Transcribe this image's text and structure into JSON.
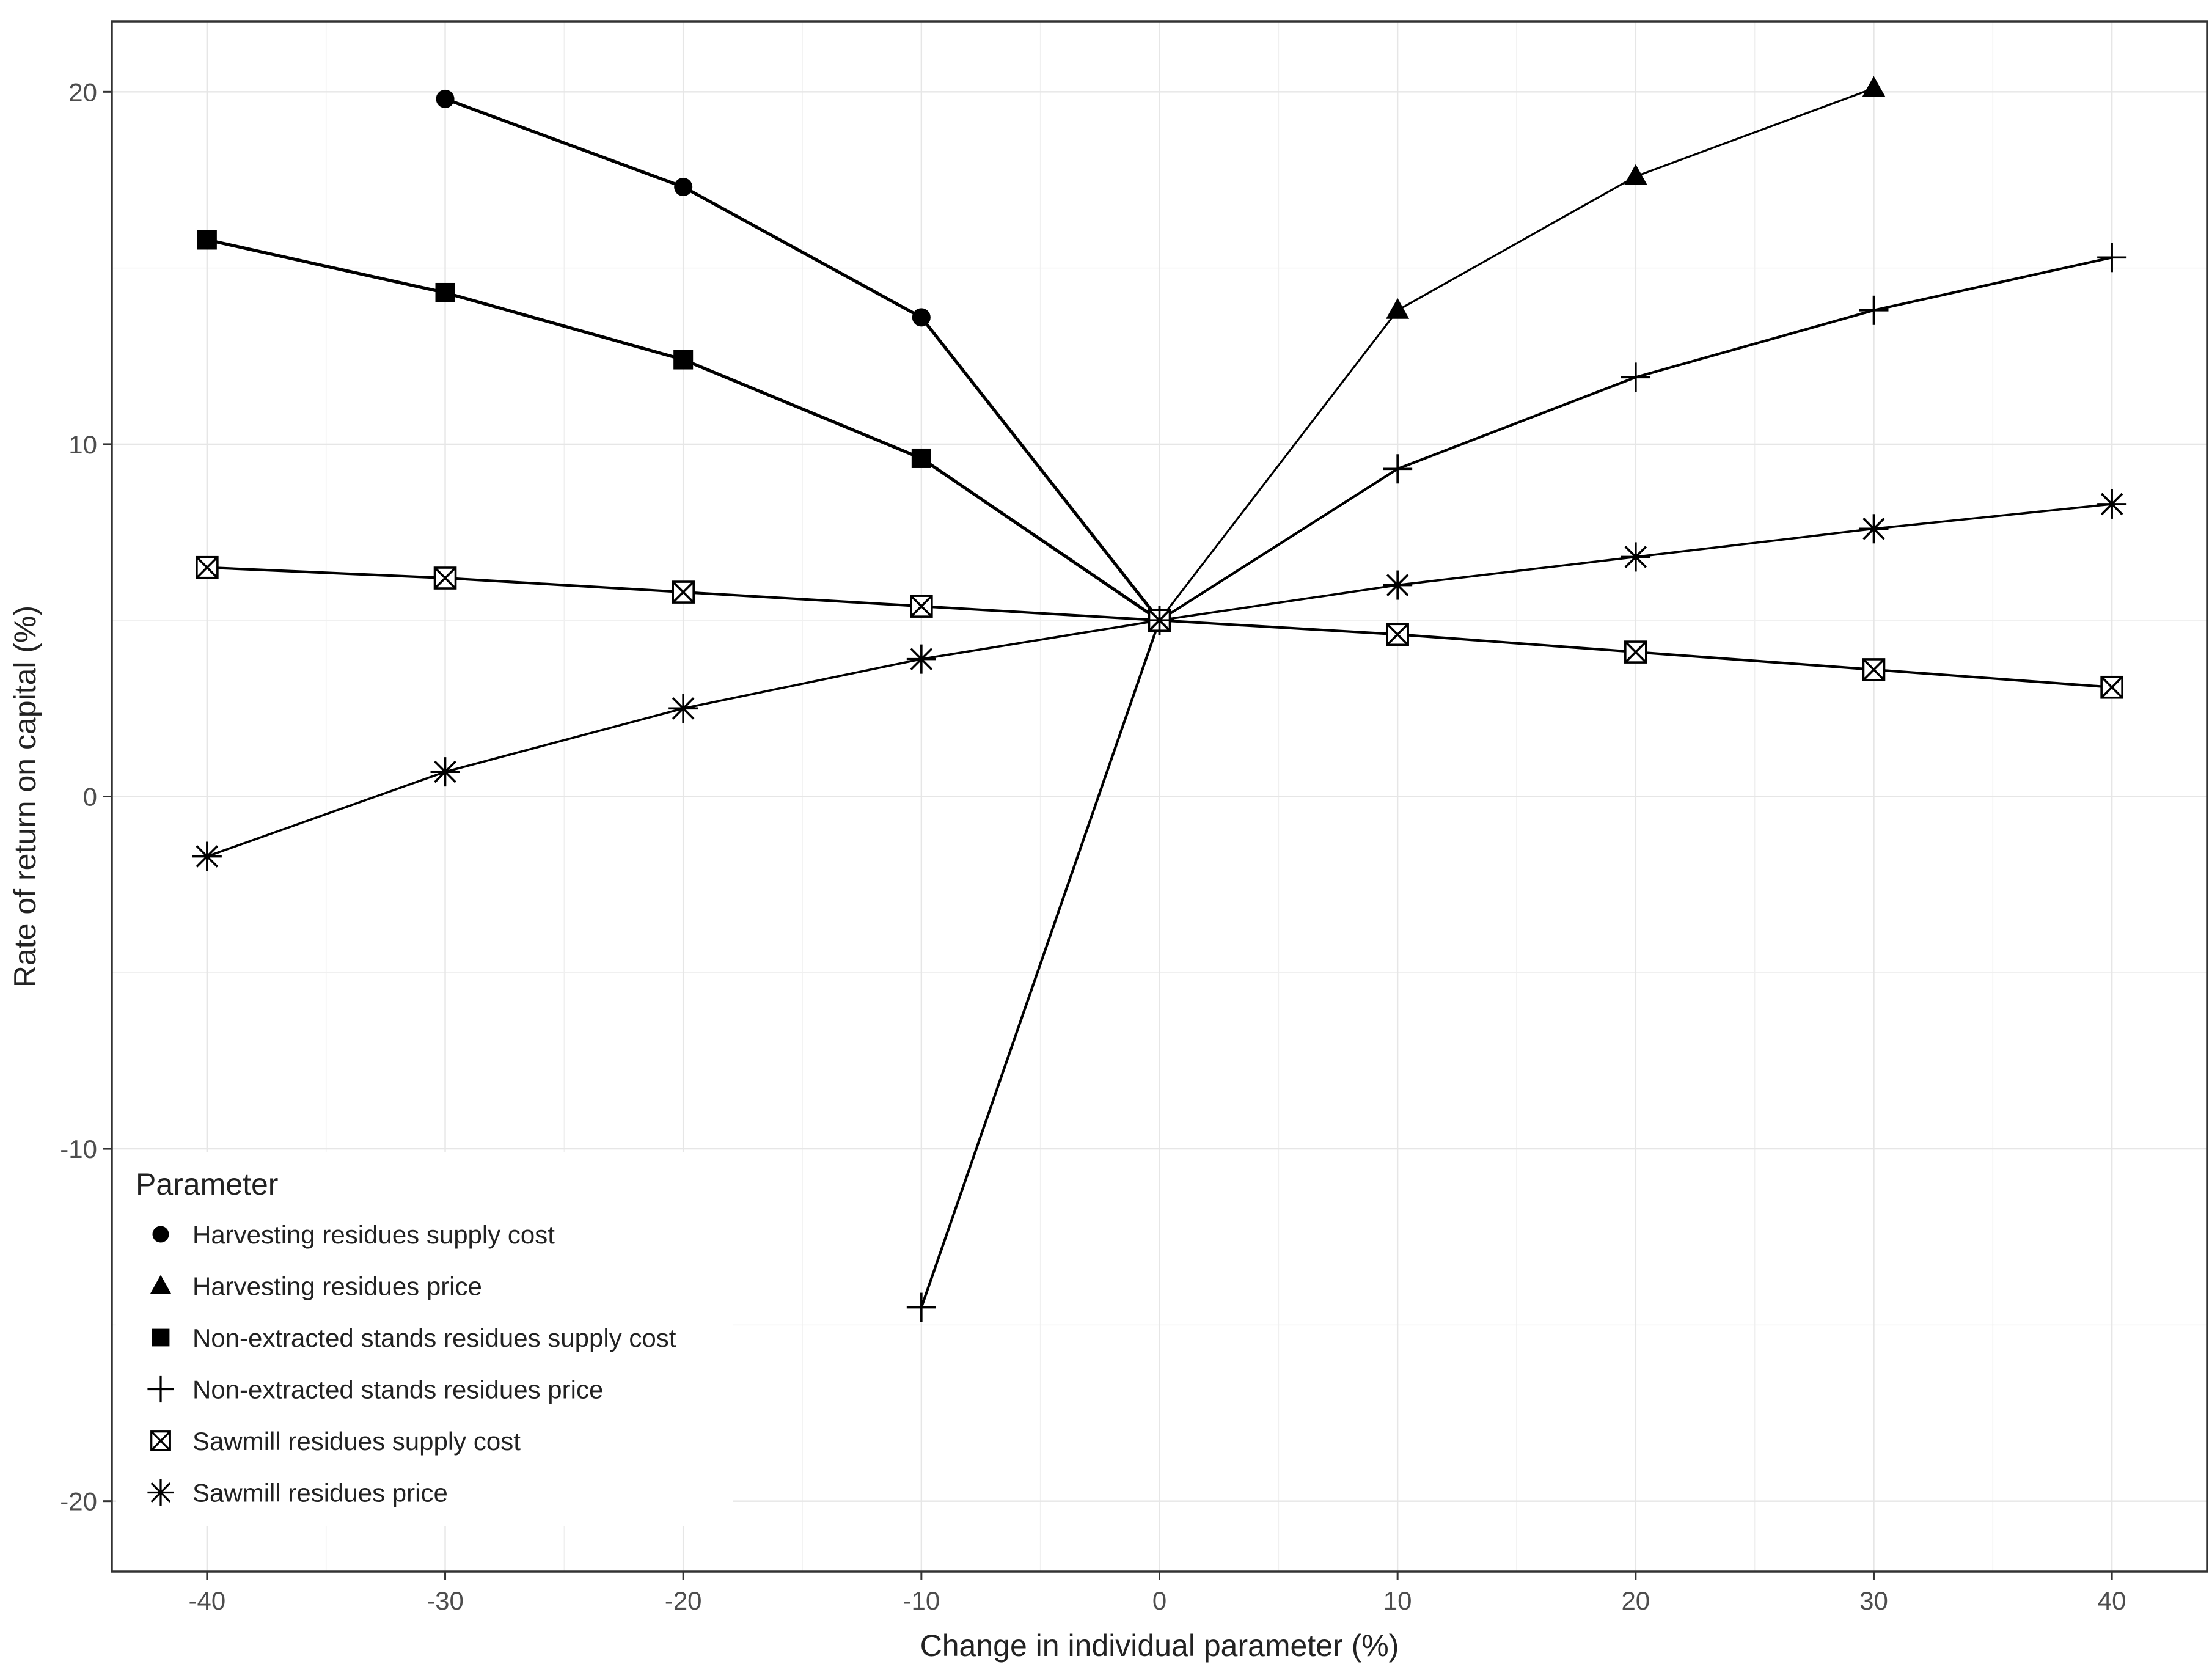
{
  "chart_data": {
    "type": "line",
    "title": "",
    "xlabel": "Change in individual parameter (%)",
    "ylabel": "Rate of return on capital (%)",
    "xlim": [
      -44,
      44
    ],
    "ylim": [
      -22,
      22
    ],
    "x_ticks": [
      -40,
      -30,
      -20,
      -10,
      0,
      10,
      20,
      30,
      40
    ],
    "y_ticks": [
      -20,
      -10,
      0,
      10,
      20
    ],
    "grid": true,
    "legend": {
      "title": "Parameter",
      "placement": "bottom-left"
    },
    "series": [
      {
        "name": "Harvesting residues supply cost",
        "marker": "filled-circle",
        "points": [
          [
            -30,
            19.8
          ],
          [
            -20,
            17.3
          ],
          [
            -10,
            13.6
          ],
          [
            0,
            5.0
          ]
        ]
      },
      {
        "name": "Harvesting residues price",
        "marker": "filled-triangle",
        "points": [
          [
            0,
            5.0
          ],
          [
            10,
            13.8
          ],
          [
            20,
            17.6
          ],
          [
            30,
            20.1
          ]
        ]
      },
      {
        "name": "Non-extracted stands residues supply cost",
        "marker": "filled-square",
        "points": [
          [
            -40,
            15.8
          ],
          [
            -30,
            14.3
          ],
          [
            -20,
            12.4
          ],
          [
            -10,
            9.6
          ],
          [
            0,
            5.0
          ]
        ]
      },
      {
        "name": "Non-extracted stands residues price",
        "marker": "plus",
        "points": [
          [
            -10,
            -14.5
          ],
          [
            0,
            5.0
          ],
          [
            10,
            9.3
          ],
          [
            20,
            11.9
          ],
          [
            30,
            13.8
          ],
          [
            40,
            15.3
          ]
        ]
      },
      {
        "name": "Sawmill residues supply cost",
        "marker": "boxed-x",
        "points": [
          [
            -40,
            6.5
          ],
          [
            -30,
            6.2
          ],
          [
            -20,
            5.8
          ],
          [
            -10,
            5.4
          ],
          [
            0,
            5.0
          ],
          [
            10,
            4.6
          ],
          [
            20,
            4.1
          ],
          [
            30,
            3.6
          ],
          [
            40,
            3.1
          ]
        ]
      },
      {
        "name": "Sawmill residues price",
        "marker": "asterisk",
        "points": [
          [
            -40,
            -1.7
          ],
          [
            -30,
            0.7
          ],
          [
            -20,
            2.5
          ],
          [
            -10,
            3.9
          ],
          [
            0,
            5.0
          ],
          [
            10,
            6.0
          ],
          [
            20,
            6.8
          ],
          [
            30,
            7.6
          ],
          [
            40,
            8.3
          ]
        ]
      }
    ]
  }
}
